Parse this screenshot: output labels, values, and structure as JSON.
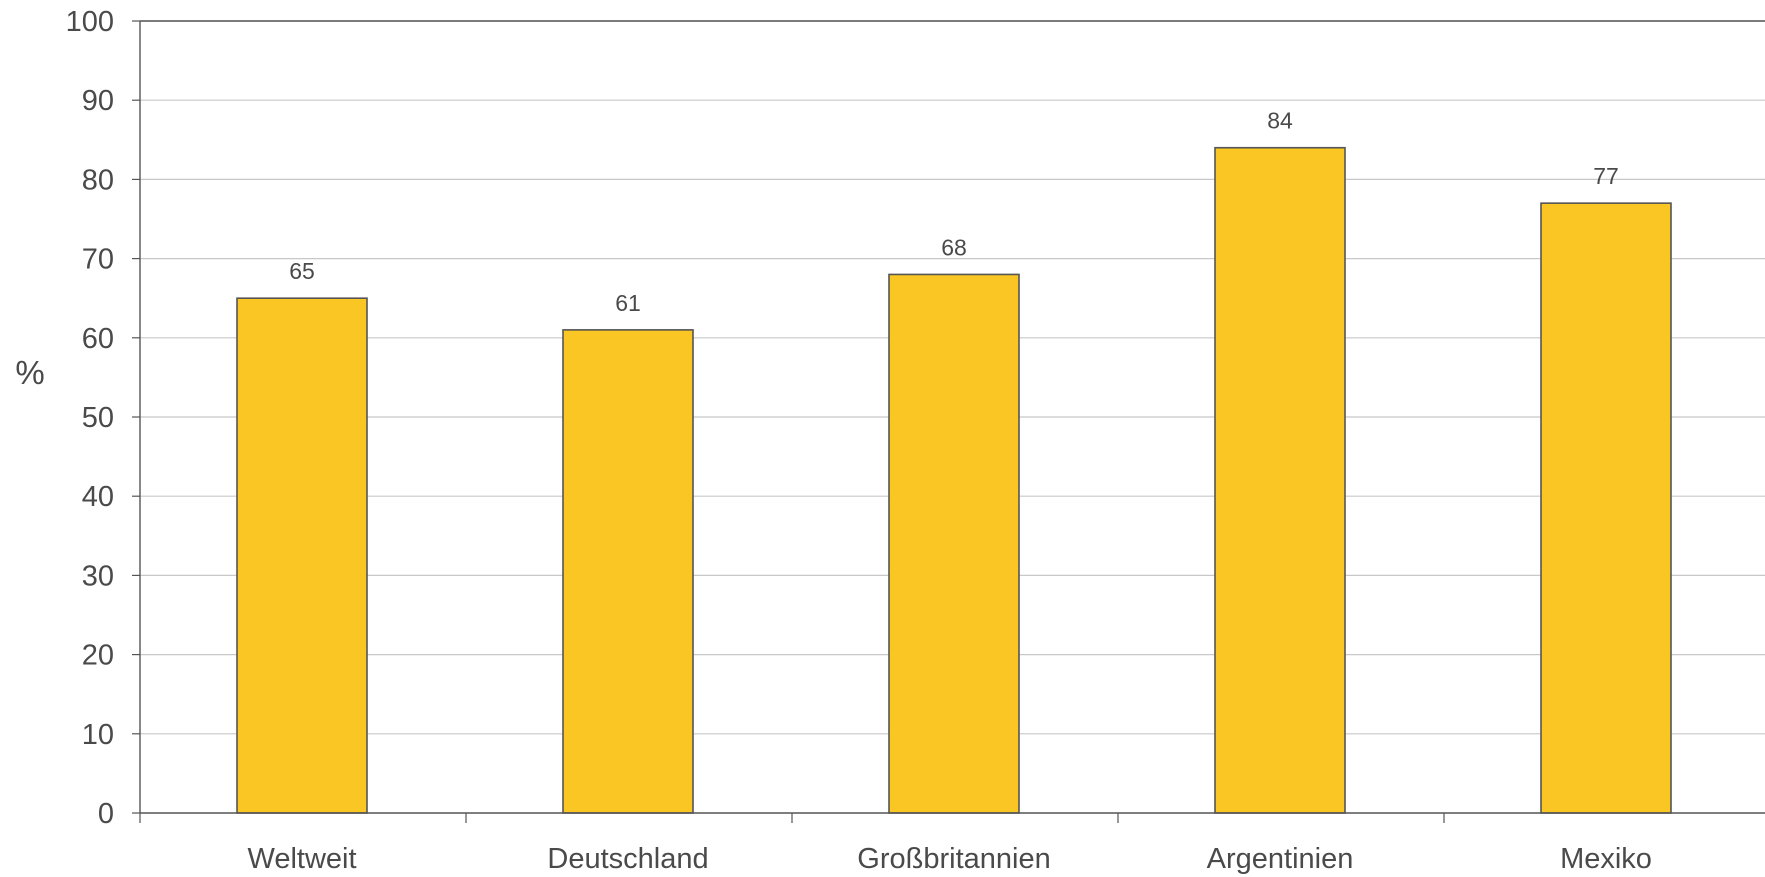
{
  "chart_data": {
    "type": "bar",
    "categories": [
      "Weltweit",
      "Deutschland",
      "Großbritannien",
      "Argentinien",
      "Mexiko"
    ],
    "values": [
      65,
      61,
      68,
      84,
      77
    ],
    "data_labels": [
      "65",
      "61",
      "68",
      "84",
      "77"
    ],
    "title": "",
    "xlabel": "",
    "ylabel": "%",
    "ylim": [
      0,
      100
    ],
    "yticks": [
      "0",
      "10",
      "20",
      "30",
      "40",
      "50",
      "60",
      "70",
      "80",
      "90",
      "100"
    ],
    "grid": true,
    "legend": "none",
    "colors": {
      "bar_fill": "#F9C623",
      "bar_stroke": "#555555",
      "grid": "#c8c8c8",
      "axis": "#555555"
    }
  }
}
